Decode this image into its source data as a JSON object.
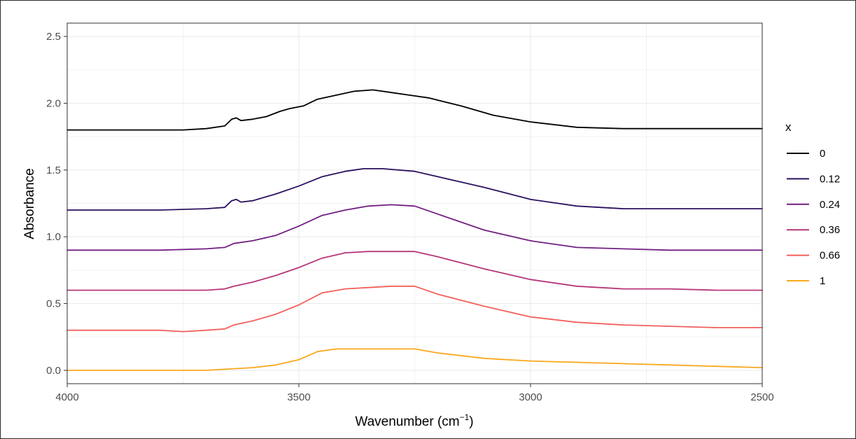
{
  "chart_data": {
    "type": "line",
    "title": "",
    "xlabel": "Wavenumber (cm",
    "xlabel_sup": "−1",
    "xlabel_close": ")",
    "ylabel": "Absorbance",
    "xlim": [
      4000,
      2500
    ],
    "x_reversed": true,
    "ylim": [
      -0.1,
      2.6
    ],
    "xticks": [
      4000,
      3500,
      3000,
      2500
    ],
    "yticks": [
      0.0,
      0.5,
      1.0,
      1.5,
      2.0,
      2.5
    ],
    "ytick_labels": [
      "0.0",
      "0.5",
      "1.0",
      "1.5",
      "2.0",
      "2.5"
    ],
    "grid": true,
    "legend": {
      "title": "x",
      "position": "right"
    },
    "series": [
      {
        "name": "0",
        "color": "#000000",
        "points": [
          [
            4000,
            1.8
          ],
          [
            3900,
            1.8
          ],
          [
            3800,
            1.8
          ],
          [
            3750,
            1.8
          ],
          [
            3700,
            1.81
          ],
          [
            3660,
            1.83
          ],
          [
            3645,
            1.88
          ],
          [
            3635,
            1.89
          ],
          [
            3625,
            1.87
          ],
          [
            3600,
            1.88
          ],
          [
            3570,
            1.9
          ],
          [
            3540,
            1.94
          ],
          [
            3520,
            1.96
          ],
          [
            3490,
            1.98
          ],
          [
            3460,
            2.03
          ],
          [
            3420,
            2.06
          ],
          [
            3380,
            2.09
          ],
          [
            3340,
            2.1
          ],
          [
            3300,
            2.08
          ],
          [
            3260,
            2.06
          ],
          [
            3220,
            2.04
          ],
          [
            3150,
            1.98
          ],
          [
            3080,
            1.91
          ],
          [
            3000,
            1.86
          ],
          [
            2900,
            1.82
          ],
          [
            2800,
            1.81
          ],
          [
            2700,
            1.81
          ],
          [
            2600,
            1.81
          ],
          [
            2500,
            1.81
          ]
        ]
      },
      {
        "name": "0.12",
        "color": "#2c115f",
        "points": [
          [
            4000,
            1.2
          ],
          [
            3900,
            1.2
          ],
          [
            3800,
            1.2
          ],
          [
            3700,
            1.21
          ],
          [
            3660,
            1.22
          ],
          [
            3645,
            1.27
          ],
          [
            3635,
            1.28
          ],
          [
            3625,
            1.26
          ],
          [
            3600,
            1.27
          ],
          [
            3550,
            1.32
          ],
          [
            3500,
            1.38
          ],
          [
            3450,
            1.45
          ],
          [
            3400,
            1.49
          ],
          [
            3360,
            1.51
          ],
          [
            3320,
            1.51
          ],
          [
            3250,
            1.49
          ],
          [
            3200,
            1.45
          ],
          [
            3100,
            1.37
          ],
          [
            3000,
            1.28
          ],
          [
            2900,
            1.23
          ],
          [
            2800,
            1.21
          ],
          [
            2700,
            1.21
          ],
          [
            2600,
            1.21
          ],
          [
            2500,
            1.21
          ]
        ]
      },
      {
        "name": "0.24",
        "color": "#721f81",
        "points": [
          [
            4000,
            0.9
          ],
          [
            3900,
            0.9
          ],
          [
            3800,
            0.9
          ],
          [
            3700,
            0.91
          ],
          [
            3660,
            0.92
          ],
          [
            3640,
            0.95
          ],
          [
            3600,
            0.97
          ],
          [
            3550,
            1.01
          ],
          [
            3500,
            1.08
          ],
          [
            3450,
            1.16
          ],
          [
            3400,
            1.2
          ],
          [
            3350,
            1.23
          ],
          [
            3300,
            1.24
          ],
          [
            3250,
            1.23
          ],
          [
            3200,
            1.17
          ],
          [
            3100,
            1.05
          ],
          [
            3000,
            0.97
          ],
          [
            2900,
            0.92
          ],
          [
            2800,
            0.91
          ],
          [
            2700,
            0.9
          ],
          [
            2600,
            0.9
          ],
          [
            2500,
            0.9
          ]
        ]
      },
      {
        "name": "0.36",
        "color": "#b63679",
        "points": [
          [
            4000,
            0.6
          ],
          [
            3900,
            0.6
          ],
          [
            3800,
            0.6
          ],
          [
            3700,
            0.6
          ],
          [
            3660,
            0.61
          ],
          [
            3640,
            0.63
          ],
          [
            3600,
            0.66
          ],
          [
            3550,
            0.71
          ],
          [
            3500,
            0.77
          ],
          [
            3450,
            0.84
          ],
          [
            3400,
            0.88
          ],
          [
            3350,
            0.89
          ],
          [
            3300,
            0.89
          ],
          [
            3250,
            0.89
          ],
          [
            3200,
            0.85
          ],
          [
            3100,
            0.76
          ],
          [
            3000,
            0.68
          ],
          [
            2900,
            0.63
          ],
          [
            2800,
            0.61
          ],
          [
            2700,
            0.61
          ],
          [
            2600,
            0.6
          ],
          [
            2500,
            0.6
          ]
        ]
      },
      {
        "name": "0.66",
        "color": "#f1605d",
        "points": [
          [
            4000,
            0.3
          ],
          [
            3900,
            0.3
          ],
          [
            3800,
            0.3
          ],
          [
            3750,
            0.29
          ],
          [
            3700,
            0.3
          ],
          [
            3660,
            0.31
          ],
          [
            3640,
            0.34
          ],
          [
            3600,
            0.37
          ],
          [
            3550,
            0.42
          ],
          [
            3500,
            0.49
          ],
          [
            3450,
            0.58
          ],
          [
            3400,
            0.61
          ],
          [
            3350,
            0.62
          ],
          [
            3300,
            0.63
          ],
          [
            3250,
            0.63
          ],
          [
            3200,
            0.57
          ],
          [
            3100,
            0.48
          ],
          [
            3000,
            0.4
          ],
          [
            2900,
            0.36
          ],
          [
            2800,
            0.34
          ],
          [
            2700,
            0.33
          ],
          [
            2600,
            0.32
          ],
          [
            2500,
            0.32
          ]
        ]
      },
      {
        "name": "1",
        "color": "#f8a81c",
        "points": [
          [
            4000,
            0.0
          ],
          [
            3900,
            0.0
          ],
          [
            3800,
            0.0
          ],
          [
            3750,
            0.0
          ],
          [
            3700,
            0.0
          ],
          [
            3650,
            0.01
          ],
          [
            3600,
            0.02
          ],
          [
            3550,
            0.04
          ],
          [
            3500,
            0.08
          ],
          [
            3460,
            0.14
          ],
          [
            3420,
            0.16
          ],
          [
            3350,
            0.16
          ],
          [
            3300,
            0.16
          ],
          [
            3250,
            0.16
          ],
          [
            3200,
            0.13
          ],
          [
            3100,
            0.09
          ],
          [
            3000,
            0.07
          ],
          [
            2900,
            0.06
          ],
          [
            2800,
            0.05
          ],
          [
            2700,
            0.04
          ],
          [
            2600,
            0.03
          ],
          [
            2500,
            0.02
          ]
        ]
      }
    ]
  }
}
